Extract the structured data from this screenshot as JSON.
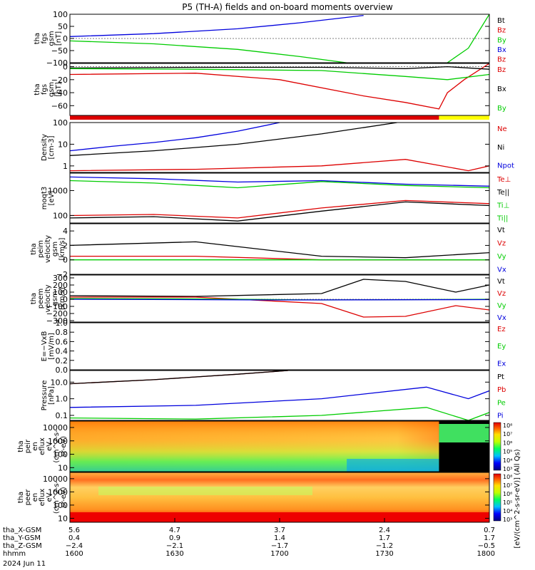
{
  "title": "P5 (TH-A) fields and on-board moments overview",
  "colors": {
    "black": "#000000",
    "red": "#dd0000",
    "green": "#00cc00",
    "blue": "#0000dd",
    "yellow": "#ffff00"
  },
  "chart_data": [
    {
      "type": "line",
      "ylabel": [
        "tha",
        "fgs",
        "gsm",
        "[nT]"
      ],
      "ylim": [
        -100,
        100
      ],
      "yticks": [
        "100",
        "50",
        "0",
        "−50",
        "−100"
      ],
      "ytick_values": [
        100,
        50,
        0,
        -50,
        -100
      ],
      "legend": [
        {
          "name": "Bt",
          "color": "#000000"
        },
        {
          "name": "Bz",
          "color": "#dd0000"
        },
        {
          "name": "By",
          "color": "#00cc00"
        },
        {
          "name": "Bx",
          "color": "#0000dd"
        },
        {
          "name": "Bz",
          "color": "#dd0000"
        }
      ],
      "series": [
        {
          "color": "#0000dd",
          "x": [
            0,
            0.2,
            0.4,
            0.55,
            0.7
          ],
          "y": [
            8,
            20,
            40,
            65,
            95
          ]
        },
        {
          "color": "#00cc00",
          "x": [
            0,
            0.2,
            0.4,
            0.55,
            0.68
          ],
          "y": [
            -10,
            -22,
            -45,
            -75,
            -105
          ]
        },
        {
          "color": "#00cc00",
          "x": [
            0.9,
            0.95,
            1.0
          ],
          "y": [
            -100,
            -40,
            100
          ]
        }
      ]
    },
    {
      "type": "line",
      "ylabel": [
        "tha",
        "fgs",
        "gsm",
        "[nT]"
      ],
      "ylim": [
        -75,
        5
      ],
      "yticks": [
        "0",
        "−20",
        "−40",
        "−60"
      ],
      "ytick_values": [
        0,
        -20,
        -40,
        -60
      ],
      "legend": [
        {
          "name": "Bz",
          "color": "#dd0000"
        },
        {
          "name": "Bx",
          "color": "#000000"
        },
        {
          "name": "By",
          "color": "#00cc00"
        }
      ],
      "series": [
        {
          "color": "#dd0000",
          "x": [
            0,
            0.3,
            0.5,
            0.7,
            0.8,
            0.88,
            0.9,
            0.94,
            1.0
          ],
          "y": [
            -12,
            -10,
            -20,
            -45,
            -55,
            -65,
            -40,
            -20,
            5
          ]
        },
        {
          "color": "#000000",
          "x": [
            0,
            0.3,
            0.6,
            0.8,
            0.9,
            1.0
          ],
          "y": [
            -2,
            -1,
            -1,
            -3,
            0,
            -4
          ]
        },
        {
          "color": "#00cc00",
          "x": [
            0,
            0.3,
            0.6,
            0.8,
            0.9,
            1.0
          ],
          "y": [
            -3,
            -4,
            -6,
            -15,
            -20,
            -12
          ]
        }
      ],
      "status_bar": [
        {
          "from": 0,
          "to": 0.88,
          "color": "#dd0000"
        },
        {
          "from": 0.88,
          "to": 1,
          "color": "#ffff00"
        }
      ]
    },
    {
      "type": "line",
      "ylabel": [
        "Density",
        "[cm-3]"
      ],
      "ylim": [
        0.5,
        100
      ],
      "log": true,
      "yticks": [
        "100",
        "10",
        "1"
      ],
      "ytick_values": [
        100,
        10,
        1
      ],
      "legend": [
        {
          "name": "Ne",
          "color": "#dd0000"
        },
        {
          "name": "Ni",
          "color": "#000000"
        },
        {
          "name": "Npot",
          "color": "#0000dd"
        }
      ],
      "series": [
        {
          "color": "#0000dd",
          "x": [
            0,
            0.1,
            0.2,
            0.3,
            0.4,
            0.5
          ],
          "y": [
            5,
            8,
            12,
            20,
            40,
            100
          ]
        },
        {
          "color": "#000000",
          "x": [
            0,
            0.2,
            0.4,
            0.6,
            0.78
          ],
          "y": [
            3,
            5,
            10,
            30,
            100
          ]
        },
        {
          "color": "#dd0000",
          "x": [
            0,
            0.3,
            0.6,
            0.8,
            0.95,
            1.0
          ],
          "y": [
            0.6,
            0.7,
            1,
            2,
            0.6,
            1
          ]
        }
      ]
    },
    {
      "type": "line",
      "ylabel": [
        "moqt3",
        "[eV]"
      ],
      "ylim": [
        50,
        5000
      ],
      "log": true,
      "yticks": [
        "1000",
        "100"
      ],
      "ytick_values": [
        1000,
        100
      ],
      "legend": [
        {
          "name": "Te⊥",
          "color": "#dd0000"
        },
        {
          "name": "Te||",
          "color": "#000000"
        },
        {
          "name": "Ti⊥",
          "color": "#00cc00"
        },
        {
          "name": "Ti||",
          "color": "#00cc00"
        }
      ],
      "series": [
        {
          "color": "#0000dd",
          "x": [
            0,
            0.2,
            0.4,
            0.6,
            0.8,
            1.0
          ],
          "y": [
            3500,
            3000,
            2200,
            2500,
            1800,
            1500
          ]
        },
        {
          "color": "#00cc00",
          "x": [
            0,
            0.2,
            0.4,
            0.6,
            0.8,
            1.0
          ],
          "y": [
            2500,
            2000,
            1300,
            2300,
            1600,
            1300
          ]
        },
        {
          "color": "#dd0000",
          "x": [
            0,
            0.2,
            0.4,
            0.6,
            0.8,
            1.0
          ],
          "y": [
            100,
            110,
            80,
            200,
            400,
            300
          ]
        },
        {
          "color": "#000000",
          "x": [
            0,
            0.2,
            0.4,
            0.6,
            0.8,
            1.0
          ],
          "y": [
            80,
            90,
            60,
            150,
            350,
            250
          ]
        }
      ]
    },
    {
      "type": "line",
      "ylabel": [
        "tha",
        "peim",
        "velocity",
        "gsm",
        "[km/s]"
      ],
      "ylim": [
        -2,
        5
      ],
      "yticks": [
        "4",
        "2",
        "0",
        "−2"
      ],
      "ytick_values": [
        4,
        2,
        0,
        -2
      ],
      "legend": [
        {
          "name": "Vt",
          "color": "#000000"
        },
        {
          "name": "Vz",
          "color": "#dd0000"
        },
        {
          "name": "Vy",
          "color": "#00cc00"
        },
        {
          "name": "Vx",
          "color": "#0000dd"
        }
      ],
      "series": [
        {
          "color": "#000000",
          "x": [
            0,
            0.3,
            0.6,
            0.8,
            1.0
          ],
          "y": [
            2,
            2.5,
            0.5,
            0.3,
            1
          ]
        },
        {
          "color": "#dd0000",
          "x": [
            0,
            0.3,
            0.6,
            1.0
          ],
          "y": [
            0.5,
            0.5,
            0,
            0
          ]
        },
        {
          "color": "#00cc00",
          "x": [
            0,
            0.3,
            0.6,
            1.0
          ],
          "y": [
            0,
            0,
            0,
            0
          ]
        }
      ]
    },
    {
      "type": "line",
      "ylabel": [
        "tha",
        "peem",
        "velocity",
        "gsm",
        "[km/s]"
      ],
      "ylim": [
        -320,
        340
      ],
      "yticks": [
        "300",
        "200",
        "100",
        "0",
        "−100",
        "−200",
        "−300"
      ],
      "ytick_values": [
        300,
        200,
        100,
        0,
        -100,
        -200,
        -300
      ],
      "legend": [
        {
          "name": "Vt",
          "color": "#000000"
        },
        {
          "name": "Vz",
          "color": "#dd0000"
        },
        {
          "name": "Vy",
          "color": "#00cc00"
        },
        {
          "name": "Vx",
          "color": "#0000dd"
        }
      ],
      "series": [
        {
          "color": "#000000",
          "x": [
            0,
            0.3,
            0.6,
            0.7,
            0.8,
            0.92,
            1.0
          ],
          "y": [
            50,
            40,
            80,
            280,
            250,
            100,
            200
          ]
        },
        {
          "color": "#dd0000",
          "x": [
            0,
            0.3,
            0.6,
            0.7,
            0.8,
            0.92,
            1.0
          ],
          "y": [
            30,
            30,
            -60,
            -250,
            -240,
            -90,
            -150
          ]
        },
        {
          "color": "#00cc00",
          "x": [
            0,
            0.3,
            0.6,
            1.0
          ],
          "y": [
            10,
            5,
            -10,
            0
          ]
        },
        {
          "color": "#0000dd",
          "x": [
            0,
            0.5,
            1.0
          ],
          "y": [
            0,
            -10,
            -5
          ]
        }
      ]
    },
    {
      "type": "line",
      "ylabel": [
        "E=−VxB",
        "[mV/m]"
      ],
      "ylim": [
        0,
        1
      ],
      "yticks": [
        "1.0",
        "0.8",
        "0.6",
        "0.4",
        "0.2",
        "0.0"
      ],
      "ytick_values": [
        1,
        0.8,
        0.6,
        0.4,
        0.2,
        0
      ],
      "legend": [
        {
          "name": "Ez",
          "color": "#dd0000"
        },
        {
          "name": "Ey",
          "color": "#00cc00"
        },
        {
          "name": "Ex",
          "color": "#0000dd"
        }
      ],
      "series": []
    },
    {
      "type": "line",
      "ylabel": [
        "Pressure",
        "[nPa]"
      ],
      "ylim": [
        0.05,
        50
      ],
      "log": true,
      "yticks": [
        "10.0",
        "1.0",
        "0.1"
      ],
      "ytick_values": [
        10,
        1,
        0.1
      ],
      "legend": [
        {
          "name": "Pt",
          "color": "#000000"
        },
        {
          "name": "Pb",
          "color": "#dd0000"
        },
        {
          "name": "Pe",
          "color": "#00cc00"
        },
        {
          "name": "Pi",
          "color": "#0000dd"
        }
      ],
      "series": [
        {
          "color": "#dd0000",
          "x": [
            0,
            0.2,
            0.4,
            0.52
          ],
          "y": [
            8,
            14,
            30,
            50
          ]
        },
        {
          "color": "#000000",
          "x": [
            0,
            0.2,
            0.4,
            0.52
          ],
          "y": [
            8,
            14,
            30,
            50
          ]
        },
        {
          "color": "#0000dd",
          "x": [
            0,
            0.3,
            0.6,
            0.85,
            0.95,
            1.0
          ],
          "y": [
            0.3,
            0.4,
            1,
            5,
            1,
            3
          ]
        },
        {
          "color": "#00cc00",
          "x": [
            0,
            0.3,
            0.6,
            0.85,
            0.95,
            1.0
          ],
          "y": [
            0.07,
            0.06,
            0.1,
            0.3,
            0.05,
            0.15
          ]
        }
      ]
    },
    {
      "type": "heatmap",
      "ylabel": [
        "tha",
        "peir",
        "en",
        "eflux",
        "eV",
        "(cm^2-s-",
        "sr-eV)"
      ],
      "ylim": [
        5,
        30000
      ],
      "log": true,
      "yticks": [
        "10000",
        "1000",
        "100",
        "10"
      ],
      "ytick_values": [
        10000,
        1000,
        100,
        10
      ]
    },
    {
      "type": "heatmap",
      "ylabel": [
        "tha",
        "peer",
        "en",
        "eflux",
        "eV",
        "(cm^2-s-",
        "sr-eV)"
      ],
      "ylim": [
        5,
        30000
      ],
      "log": true,
      "yticks": [
        "10000",
        "1000",
        "100",
        "10"
      ],
      "ytick_values": [
        10000,
        1000,
        100,
        10
      ]
    }
  ],
  "colorbar": {
    "ticks": [
      "10⁸",
      "10⁷",
      "10⁶",
      "10⁵",
      "10⁴",
      "10³"
    ],
    "label": "[eV/(cm^2-s-sr-eV)] (All Qs)"
  },
  "colorbar2": {
    "ticks": [
      "10⁸",
      "10⁷",
      "10⁶",
      "10⁵",
      "10⁴",
      "10³"
    ]
  },
  "axis": {
    "rows": [
      {
        "label": "tha_X-GSM",
        "values": [
          "5.6",
          "4.7",
          "3.7",
          "2.4",
          "0.7"
        ]
      },
      {
        "label": "tha_Y-GSM",
        "values": [
          "0.4",
          "0.9",
          "1.4",
          "1.7",
          "1.7"
        ]
      },
      {
        "label": "tha_Z-GSM",
        "values": [
          "−2.4",
          "−2.1",
          "−1.7",
          "−1.2",
          "−0.5"
        ]
      },
      {
        "label": "hhmm",
        "values": [
          "1600",
          "1630",
          "1700",
          "1730",
          "1800"
        ]
      }
    ],
    "date": "2024 Jun 11"
  }
}
